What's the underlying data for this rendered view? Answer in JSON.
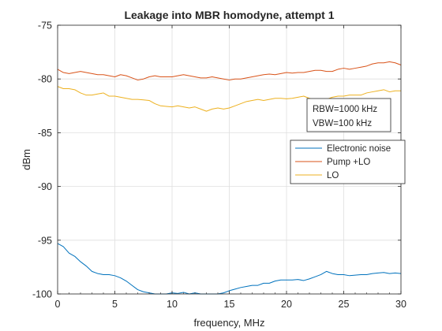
{
  "chart_data": {
    "type": "line",
    "title": "Leakage into MBR homodyne, attempt 1",
    "xlabel": "frequency, MHz",
    "ylabel": "dBm",
    "xlim": [
      0,
      30
    ],
    "ylim": [
      -100,
      -75
    ],
    "xticks": [
      0,
      5,
      10,
      15,
      20,
      25,
      30
    ],
    "yticks": [
      -100,
      -95,
      -90,
      -85,
      -80,
      -75
    ],
    "grid": true,
    "legend_position": "right",
    "annotation": [
      "RBW=1000 kHz",
      "VBW=100 kHz"
    ],
    "series": [
      {
        "name": "Electronic noise",
        "color": "#0072BD",
        "x": [
          0,
          0.5,
          1,
          1.5,
          2,
          2.5,
          3,
          3.5,
          4,
          4.5,
          5,
          5.5,
          6,
          6.5,
          7,
          7.5,
          8,
          8.5,
          9,
          9.5,
          10,
          10.5,
          11,
          11.5,
          12,
          12.5,
          13,
          13.5,
          14,
          14.5,
          15,
          15.5,
          16,
          16.5,
          17,
          17.5,
          18,
          18.5,
          19,
          19.5,
          20,
          20.5,
          21,
          21.5,
          22,
          22.5,
          23,
          23.5,
          24,
          24.5,
          25,
          25.5,
          26,
          26.5,
          27,
          27.5,
          28,
          28.5,
          29,
          29.5,
          30
        ],
        "y": [
          -95.3,
          -95.6,
          -96.2,
          -96.5,
          -97.0,
          -97.4,
          -97.9,
          -98.1,
          -98.2,
          -98.2,
          -98.3,
          -98.5,
          -98.8,
          -99.2,
          -99.6,
          -99.8,
          -99.9,
          -100.0,
          -100.0,
          -100.0,
          -99.9,
          -99.95,
          -99.85,
          -100.0,
          -99.9,
          -100.0,
          -100.0,
          -100.0,
          -100.0,
          -99.9,
          -99.7,
          -99.55,
          -99.4,
          -99.3,
          -99.2,
          -99.2,
          -99.0,
          -99.0,
          -98.8,
          -98.7,
          -98.7,
          -98.7,
          -98.65,
          -98.75,
          -98.6,
          -98.4,
          -98.2,
          -97.9,
          -98.1,
          -98.2,
          -98.2,
          -98.3,
          -98.25,
          -98.2,
          -98.2,
          -98.1,
          -98.05,
          -98.0,
          -98.1,
          -98.05,
          -98.1
        ]
      },
      {
        "name": "Pump +LO",
        "color": "#D95319",
        "x": [
          0,
          0.5,
          1,
          1.5,
          2,
          2.5,
          3,
          3.5,
          4,
          4.5,
          5,
          5.5,
          6,
          6.5,
          7,
          7.5,
          8,
          8.5,
          9,
          9.5,
          10,
          10.5,
          11,
          11.5,
          12,
          12.5,
          13,
          13.5,
          14,
          14.5,
          15,
          15.5,
          16,
          16.5,
          17,
          17.5,
          18,
          18.5,
          19,
          19.5,
          20,
          20.5,
          21,
          21.5,
          22,
          22.5,
          23,
          23.5,
          24,
          24.5,
          25,
          25.5,
          26,
          26.5,
          27,
          27.5,
          28,
          28.5,
          29,
          29.5,
          30
        ],
        "y": [
          -79.1,
          -79.4,
          -79.5,
          -79.4,
          -79.3,
          -79.4,
          -79.5,
          -79.6,
          -79.6,
          -79.7,
          -79.8,
          -79.6,
          -79.7,
          -79.9,
          -80.1,
          -80.0,
          -79.8,
          -79.7,
          -79.8,
          -79.8,
          -79.8,
          -79.7,
          -79.6,
          -79.7,
          -79.8,
          -79.9,
          -79.9,
          -79.8,
          -79.9,
          -80.0,
          -80.1,
          -80.0,
          -80.0,
          -79.9,
          -79.8,
          -79.7,
          -79.6,
          -79.55,
          -79.6,
          -79.5,
          -79.4,
          -79.45,
          -79.4,
          -79.4,
          -79.3,
          -79.2,
          -79.2,
          -79.3,
          -79.3,
          -79.1,
          -79.0,
          -79.1,
          -79.0,
          -78.9,
          -78.8,
          -78.6,
          -78.5,
          -78.5,
          -78.4,
          -78.5,
          -78.7
        ]
      },
      {
        "name": "LO",
        "color": "#EDB120",
        "x": [
          0,
          0.5,
          1,
          1.5,
          2,
          2.5,
          3,
          3.5,
          4,
          4.5,
          5,
          5.5,
          6,
          6.5,
          7,
          7.5,
          8,
          8.5,
          9,
          9.5,
          10,
          10.5,
          11,
          11.5,
          12,
          12.5,
          13,
          13.5,
          14,
          14.5,
          15,
          15.5,
          16,
          16.5,
          17,
          17.5,
          18,
          18.5,
          19,
          19.5,
          20,
          20.5,
          21,
          21.5,
          22,
          22.5,
          23,
          23.5,
          24,
          24.5,
          25,
          25.5,
          26,
          26.5,
          27,
          27.5,
          28,
          28.5,
          29,
          29.5,
          30
        ],
        "y": [
          -80.7,
          -80.9,
          -80.9,
          -81.0,
          -81.3,
          -81.5,
          -81.5,
          -81.4,
          -81.3,
          -81.6,
          -81.6,
          -81.7,
          -81.8,
          -81.9,
          -81.9,
          -81.95,
          -82.0,
          -82.3,
          -82.5,
          -82.55,
          -82.6,
          -82.5,
          -82.6,
          -82.7,
          -82.6,
          -82.8,
          -83.0,
          -82.8,
          -82.7,
          -82.8,
          -82.7,
          -82.5,
          -82.3,
          -82.1,
          -82.0,
          -81.9,
          -82.0,
          -81.9,
          -81.8,
          -81.8,
          -81.85,
          -81.8,
          -81.7,
          -81.6,
          -81.8,
          -82.0,
          -82.1,
          -81.9,
          -81.7,
          -81.6,
          -81.6,
          -81.5,
          -81.5,
          -81.5,
          -81.3,
          -81.2,
          -81.1,
          -81.0,
          -81.2,
          -81.1,
          -81.1
        ]
      }
    ]
  }
}
